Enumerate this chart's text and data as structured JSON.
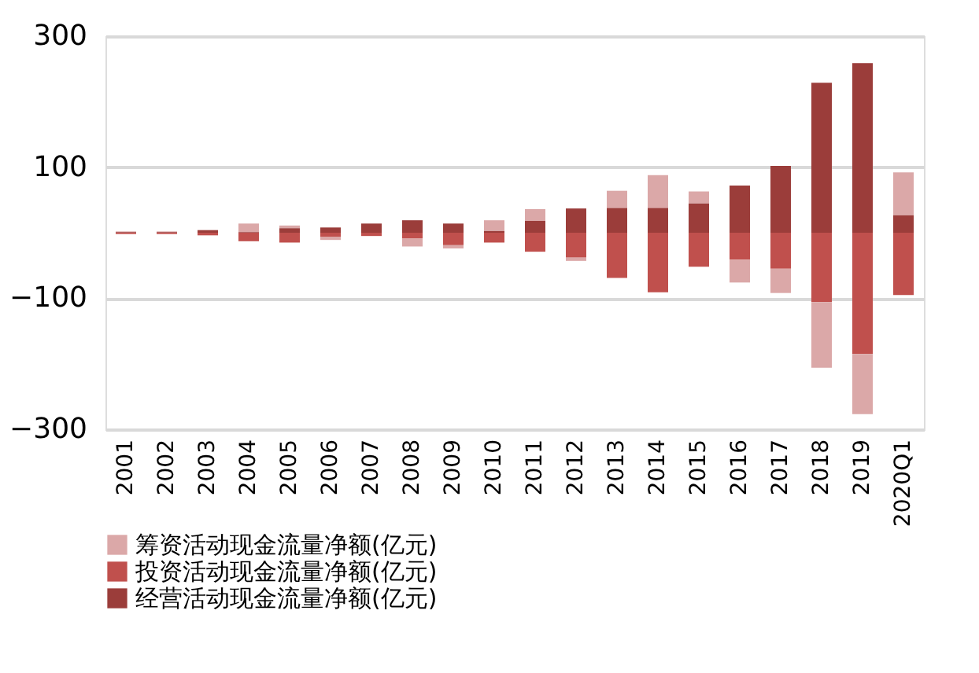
{
  "chart_data": {
    "type": "bar",
    "stacked": true,
    "categories": [
      "2001",
      "2002",
      "2003",
      "2004",
      "2005",
      "2006",
      "2007",
      "2008",
      "2009",
      "2010",
      "2011",
      "2012",
      "2013",
      "2014",
      "2015",
      "2016",
      "2017",
      "2018",
      "2019",
      "2020Q1"
    ],
    "series": [
      {
        "name": "经营活动现金流量净额(亿元)",
        "color": "#9b3d3a",
        "values": [
          1,
          1,
          4,
          1,
          7,
          8,
          14,
          19,
          14,
          3,
          18,
          37,
          38,
          38,
          45,
          72,
          102,
          229,
          259,
          27
        ]
      },
      {
        "name": "投资活动现金流量净额(亿元)",
        "color": "#c0504d",
        "values": [
          -2,
          -2,
          -4,
          -13,
          -15,
          -6,
          -5,
          -9,
          -19,
          -15,
          -29,
          -38,
          -69,
          -91,
          -52,
          -41,
          -55,
          -106,
          -185,
          -95
        ]
      },
      {
        "name": "筹资活动现金流量净额(亿元)",
        "color": "#dba8a8",
        "values": [
          1,
          1,
          null,
          13,
          4,
          -5,
          null,
          -12,
          -5,
          16,
          18,
          -5,
          26,
          50,
          18,
          -35,
          -37,
          -100,
          -92,
          65
        ]
      }
    ],
    "ylim": [
      -300,
      300
    ],
    "yticks": [
      -300,
      -100,
      100,
      300
    ],
    "grid": "y",
    "legend": "bottom"
  }
}
